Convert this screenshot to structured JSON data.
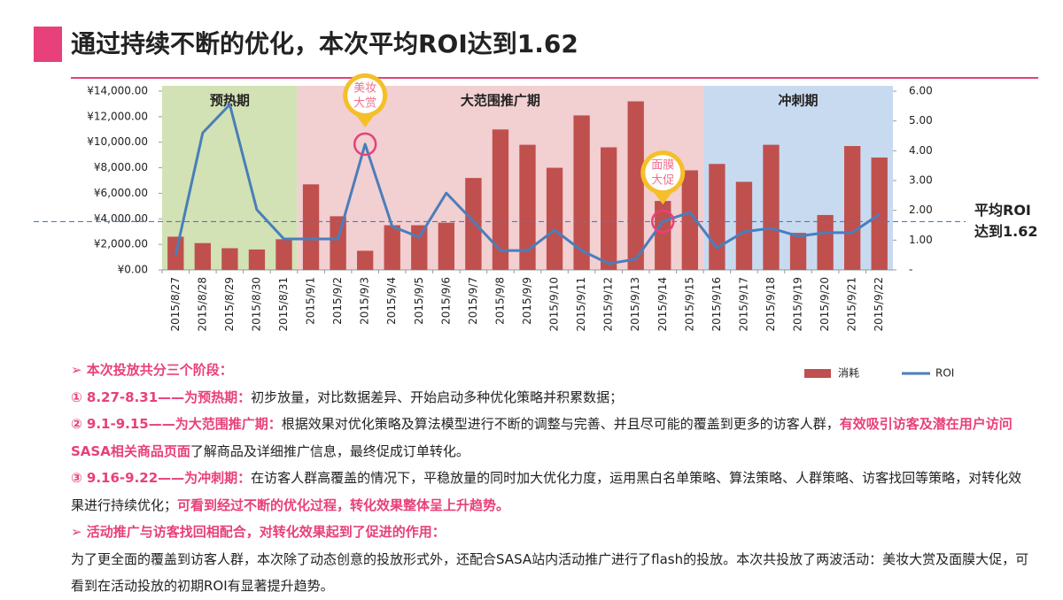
{
  "chart_data": {
    "type": "combo",
    "title": "通过持续不断的优化，本次平均ROI达到1.62",
    "categories": [
      "2015/8/27",
      "2015/8/28",
      "2015/8/29",
      "2015/8/30",
      "2015/8/31",
      "2015/9/1",
      "2015/9/2",
      "2015/9/3",
      "2015/9/4",
      "2015/9/5",
      "2015/9/6",
      "2015/9/7",
      "2015/9/8",
      "2015/9/9",
      "2015/9/10",
      "2015/9/11",
      "2015/9/12",
      "2015/9/13",
      "2015/9/14",
      "2015/9/15",
      "2015/9/16",
      "2015/9/17",
      "2015/9/18",
      "2015/9/19",
      "2015/9/20",
      "2015/9/21",
      "2015/9/22"
    ],
    "series": [
      {
        "name": "消耗",
        "type": "bar",
        "color": "#c0504d",
        "values": [
          2600,
          2100,
          1700,
          1600,
          2400,
          6700,
          4200,
          1500,
          3500,
          3500,
          3700,
          7200,
          11000,
          9800,
          8000,
          12100,
          9600,
          13200,
          5400,
          7800,
          8300,
          6900,
          9800,
          2900,
          4300,
          9700,
          8800
        ]
      },
      {
        "name": "ROI",
        "type": "line",
        "axis": "y2",
        "color": "#4a7ebb",
        "values": [
          0.5,
          4.6,
          5.55,
          2.02,
          1.04,
          1.04,
          1.04,
          4.22,
          1.46,
          1.1,
          2.58,
          1.63,
          0.65,
          0.65,
          1.34,
          0.65,
          0.21,
          0.36,
          1.63,
          1.93,
          0.74,
          1.28,
          1.4,
          1.13,
          1.25,
          1.25,
          1.87
        ]
      }
    ],
    "ylim": [
      0,
      14000
    ],
    "yticks": [
      {
        "value": 0,
        "label": "¥0.00"
      },
      {
        "value": 2000,
        "label": "¥2,000.00"
      },
      {
        "value": 4000,
        "label": "¥4,000.00"
      },
      {
        "value": 6000,
        "label": "¥6,000.00"
      },
      {
        "value": 8000,
        "label": "¥8,000.00"
      },
      {
        "value": 10000,
        "label": "¥10,000.00"
      },
      {
        "value": 12000,
        "label": "¥12,000.00"
      },
      {
        "value": 14000,
        "label": "¥14,000.00"
      }
    ],
    "y2lim": [
      0,
      6
    ],
    "y2ticks": [
      {
        "value": 0,
        "label": "-"
      },
      {
        "value": 1,
        "label": "1.00"
      },
      {
        "value": 2,
        "label": "2.00"
      },
      {
        "value": 3,
        "label": "3.00"
      },
      {
        "value": 4,
        "label": "4.00"
      },
      {
        "value": 5,
        "label": "5.00"
      },
      {
        "value": 6,
        "label": "6.00"
      }
    ],
    "phases": [
      {
        "label": "预热期",
        "start": "2015/8/27",
        "end": "2015/8/31",
        "color": "#d2e2b4"
      },
      {
        "label": "大范围推广期",
        "start": "2015/9/1",
        "end": "2015/9/15",
        "color": "#f2cfd1"
      },
      {
        "label": "冲刺期",
        "start": "2015/9/16",
        "end": "2015/9/22",
        "color": "#c8daf0"
      }
    ],
    "annotations": [
      {
        "lines": [
          "美妆",
          "大赏"
        ],
        "at": "2015/9/3"
      },
      {
        "lines": [
          "面膜",
          "大促"
        ],
        "at": "2015/9/14"
      }
    ],
    "average": {
      "value": 1.62,
      "lines": [
        "平均ROI",
        "达到1.62"
      ]
    },
    "legend": "bottom-right"
  },
  "notes": [
    {
      "runs": [
        {
          "text": "➢  本次投放共分三个阶段：",
          "emphasis": true
        }
      ]
    },
    {
      "runs": [
        {
          "text": "① 8.27-8.31——为预热期：",
          "emphasis": true
        },
        {
          "text": "初步放量，对比数据差异、开始启动多种优化策略并积累数据；",
          "emphasis": false
        }
      ]
    },
    {
      "runs": [
        {
          "text": "② 9.1-9.15——为大范围推广期：",
          "emphasis": true
        },
        {
          "text": "根据效果对优化策略及算法模型进行不断的调整与完善、并且尽可能的覆盖到更多的访客人群，",
          "emphasis": false
        },
        {
          "text": "有效吸引访客及潜在用户访问SASA相关商品页面",
          "emphasis": true
        },
        {
          "text": "了解商品及详细推广信息，最终促成订单转化。",
          "emphasis": false
        }
      ]
    },
    {
      "runs": [
        {
          "text": "③ 9.16-9.22——为冲刺期：",
          "emphasis": true
        },
        {
          "text": "在访客人群高覆盖的情况下，平稳放量的同时加大优化力度，运用黑白名单策略、算法策略、人群策略、访客找回等策略，对转化效果进行持续优化；",
          "emphasis": false
        },
        {
          "text": "可看到经过不断的优化过程，转化效果整体呈上升趋势。",
          "emphasis": true
        }
      ]
    },
    {
      "runs": [
        {
          "text": "➢  活动推广与访客找回相配合，对转化效果起到了促进的作用：",
          "emphasis": true
        }
      ]
    },
    {
      "runs": [
        {
          "text": "为了更全面的覆盖到访客人群，本次除了动态创意的投放形式外，还配合SASA站内活动推广进行了flash的投放。本次共投放了两波活动：美妆大赏及面膜大促，可看到在活动投放的初期ROI有显著提升趋势。",
          "emphasis": false
        }
      ]
    }
  ]
}
